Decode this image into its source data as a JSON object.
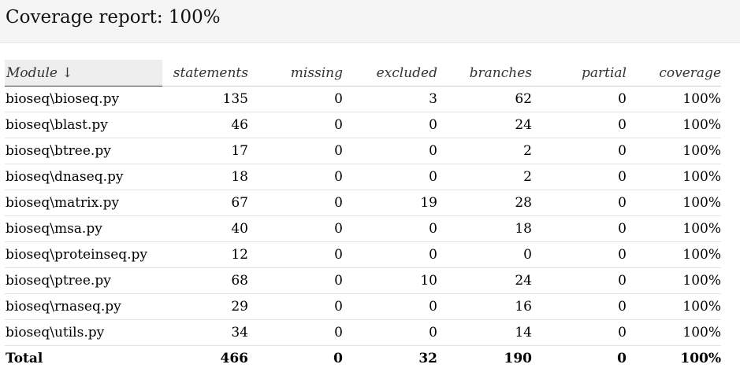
{
  "header": {
    "title": "Coverage report: 100%"
  },
  "table": {
    "columns": {
      "module": "Module ↓",
      "statements": "statements",
      "missing": "missing",
      "excluded": "excluded",
      "branches": "branches",
      "partial": "partial",
      "coverage": "coverage"
    },
    "rows": [
      {
        "module": "bioseq\\bioseq.py",
        "statements": "135",
        "missing": "0",
        "excluded": "3",
        "branches": "62",
        "partial": "0",
        "coverage": "100%"
      },
      {
        "module": "bioseq\\blast.py",
        "statements": "46",
        "missing": "0",
        "excluded": "0",
        "branches": "24",
        "partial": "0",
        "coverage": "100%"
      },
      {
        "module": "bioseq\\btree.py",
        "statements": "17",
        "missing": "0",
        "excluded": "0",
        "branches": "2",
        "partial": "0",
        "coverage": "100%"
      },
      {
        "module": "bioseq\\dnaseq.py",
        "statements": "18",
        "missing": "0",
        "excluded": "0",
        "branches": "2",
        "partial": "0",
        "coverage": "100%"
      },
      {
        "module": "bioseq\\matrix.py",
        "statements": "67",
        "missing": "0",
        "excluded": "19",
        "branches": "28",
        "partial": "0",
        "coverage": "100%"
      },
      {
        "module": "bioseq\\msa.py",
        "statements": "40",
        "missing": "0",
        "excluded": "0",
        "branches": "18",
        "partial": "0",
        "coverage": "100%"
      },
      {
        "module": "bioseq\\proteinseq.py",
        "statements": "12",
        "missing": "0",
        "excluded": "0",
        "branches": "0",
        "partial": "0",
        "coverage": "100%"
      },
      {
        "module": "bioseq\\ptree.py",
        "statements": "68",
        "missing": "0",
        "excluded": "10",
        "branches": "24",
        "partial": "0",
        "coverage": "100%"
      },
      {
        "module": "bioseq\\rnaseq.py",
        "statements": "29",
        "missing": "0",
        "excluded": "0",
        "branches": "16",
        "partial": "0",
        "coverage": "100%"
      },
      {
        "module": "bioseq\\utils.py",
        "statements": "34",
        "missing": "0",
        "excluded": "0",
        "branches": "14",
        "partial": "0",
        "coverage": "100%"
      }
    ],
    "total": {
      "module": "Total",
      "statements": "466",
      "missing": "0",
      "excluded": "32",
      "branches": "190",
      "partial": "0",
      "coverage": "100%"
    }
  }
}
